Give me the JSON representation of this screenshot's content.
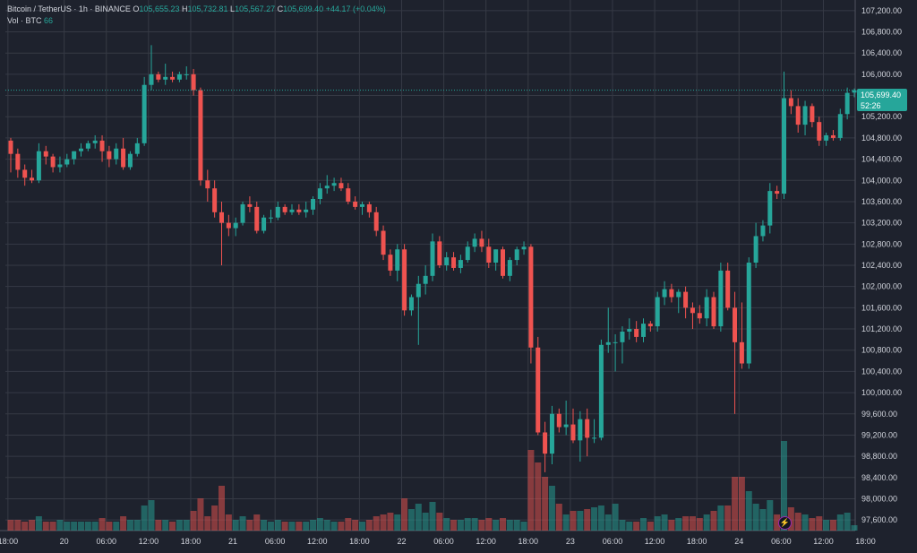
{
  "legend": {
    "symbol": "Bitcoin / TetherUS · 1h · BINANCE",
    "o_label": "O",
    "o_value": "105,655.23",
    "h_label": "H",
    "h_value": "105,732.81",
    "l_label": "L",
    "l_value": "105,567.27",
    "c_label": "C",
    "c_value": "105,699.40",
    "change": "+44.17 (+0.04%)",
    "vol_label": "Vol · BTC",
    "vol_value": "66"
  },
  "price_tag": {
    "price": "105,699.40",
    "countdown": "52:26"
  },
  "flash_icon": "lightning-icon",
  "colors": {
    "up": "#26a69a",
    "down": "#ef5350",
    "bg": "#1e222d",
    "grid": "#363a45"
  },
  "chart_data": {
    "type": "candlestick",
    "interval": "1h",
    "ylim": [
      97400,
      107400
    ],
    "y_ticks": [
      "107,200.00",
      "106,800.00",
      "106,400.00",
      "106,000.00",
      "105,600.00",
      "105,200.00",
      "104,800.00",
      "104,400.00",
      "104,000.00",
      "103,600.00",
      "103,200.00",
      "102,800.00",
      "102,400.00",
      "102,000.00",
      "101,600.00",
      "101,200.00",
      "100,800.00",
      "100,400.00",
      "100,000.00",
      "99,600.00",
      "99,200.00",
      "98,800.00",
      "98,400.00",
      "98,000.00",
      "97,600.00"
    ],
    "x_ticks": [
      "18:00",
      "20",
      "06:00",
      "12:00",
      "18:00",
      "21",
      "06:00",
      "12:00",
      "18:00",
      "22",
      "06:00",
      "12:00",
      "18:00",
      "23",
      "06:00",
      "12:00",
      "18:00",
      "24",
      "06:00",
      "12:00",
      "18:00"
    ],
    "x_tick_slots": [
      -0.4,
      7.6,
      13.6,
      19.6,
      25.6,
      31.6,
      37.6,
      43.6,
      49.6,
      55.6,
      61.6,
      67.6,
      73.6,
      79.6,
      85.6,
      91.6,
      97.6,
      103.6,
      109.6,
      115.6,
      121.6
    ],
    "candles": [
      {
        "o": 104750,
        "h": 104800,
        "l": 104150,
        "c": 104500,
        "v": 6
      },
      {
        "o": 104500,
        "h": 104600,
        "l": 104050,
        "c": 104200,
        "v": 6
      },
      {
        "o": 104200,
        "h": 104300,
        "l": 103900,
        "c": 104050,
        "v": 5
      },
      {
        "o": 104050,
        "h": 104200,
        "l": 103950,
        "c": 104000,
        "v": 6
      },
      {
        "o": 104000,
        "h": 104700,
        "l": 103950,
        "c": 104550,
        "v": 8
      },
      {
        "o": 104550,
        "h": 104650,
        "l": 104300,
        "c": 104450,
        "v": 5
      },
      {
        "o": 104450,
        "h": 104500,
        "l": 104150,
        "c": 104250,
        "v": 5
      },
      {
        "o": 104250,
        "h": 104450,
        "l": 104150,
        "c": 104300,
        "v": 6
      },
      {
        "o": 104300,
        "h": 104500,
        "l": 104250,
        "c": 104400,
        "v": 5
      },
      {
        "o": 104400,
        "h": 104550,
        "l": 104300,
        "c": 104550,
        "v": 5
      },
      {
        "o": 104550,
        "h": 104700,
        "l": 104450,
        "c": 104600,
        "v": 5
      },
      {
        "o": 104600,
        "h": 104750,
        "l": 104550,
        "c": 104700,
        "v": 5
      },
      {
        "o": 104700,
        "h": 104850,
        "l": 104600,
        "c": 104750,
        "v": 5
      },
      {
        "o": 104750,
        "h": 104850,
        "l": 104350,
        "c": 104550,
        "v": 7
      },
      {
        "o": 104550,
        "h": 104650,
        "l": 104250,
        "c": 104400,
        "v": 5
      },
      {
        "o": 104400,
        "h": 104700,
        "l": 104300,
        "c": 104600,
        "v": 5
      },
      {
        "o": 104600,
        "h": 104800,
        "l": 104200,
        "c": 104250,
        "v": 8
      },
      {
        "o": 104250,
        "h": 104550,
        "l": 104200,
        "c": 104500,
        "v": 6
      },
      {
        "o": 104500,
        "h": 104800,
        "l": 104450,
        "c": 104700,
        "v": 6
      },
      {
        "o": 104700,
        "h": 105950,
        "l": 104650,
        "c": 105800,
        "v": 14
      },
      {
        "o": 105800,
        "h": 106550,
        "l": 105700,
        "c": 106000,
        "v": 17
      },
      {
        "o": 106000,
        "h": 106050,
        "l": 105850,
        "c": 105900,
        "v": 6
      },
      {
        "o": 105900,
        "h": 106200,
        "l": 105800,
        "c": 105950,
        "v": 6
      },
      {
        "o": 105950,
        "h": 106050,
        "l": 105850,
        "c": 105900,
        "v": 5
      },
      {
        "o": 105900,
        "h": 106050,
        "l": 105850,
        "c": 106000,
        "v": 6
      },
      {
        "o": 106000,
        "h": 106150,
        "l": 105900,
        "c": 106000,
        "v": 6
      },
      {
        "o": 106000,
        "h": 106100,
        "l": 105600,
        "c": 105700,
        "v": 11
      },
      {
        "o": 105700,
        "h": 105750,
        "l": 103900,
        "c": 104000,
        "v": 18
      },
      {
        "o": 104000,
        "h": 104200,
        "l": 103600,
        "c": 103850,
        "v": 8
      },
      {
        "o": 103850,
        "h": 104000,
        "l": 103300,
        "c": 103400,
        "v": 14
      },
      {
        "o": 103400,
        "h": 103600,
        "l": 102400,
        "c": 103200,
        "v": 25
      },
      {
        "o": 103200,
        "h": 103350,
        "l": 102950,
        "c": 103100,
        "v": 9
      },
      {
        "o": 103100,
        "h": 103300,
        "l": 102950,
        "c": 103200,
        "v": 6
      },
      {
        "o": 103200,
        "h": 103600,
        "l": 103150,
        "c": 103550,
        "v": 8
      },
      {
        "o": 103550,
        "h": 103700,
        "l": 103400,
        "c": 103500,
        "v": 6
      },
      {
        "o": 103500,
        "h": 103600,
        "l": 103000,
        "c": 103050,
        "v": 9
      },
      {
        "o": 103050,
        "h": 103350,
        "l": 103000,
        "c": 103300,
        "v": 6
      },
      {
        "o": 103300,
        "h": 103450,
        "l": 103200,
        "c": 103300,
        "v": 5
      },
      {
        "o": 103300,
        "h": 103600,
        "l": 103250,
        "c": 103500,
        "v": 6
      },
      {
        "o": 103500,
        "h": 103550,
        "l": 103350,
        "c": 103400,
        "v": 5
      },
      {
        "o": 103400,
        "h": 103550,
        "l": 103350,
        "c": 103450,
        "v": 5
      },
      {
        "o": 103450,
        "h": 103550,
        "l": 103350,
        "c": 103400,
        "v": 5
      },
      {
        "o": 103400,
        "h": 103600,
        "l": 103300,
        "c": 103450,
        "v": 5
      },
      {
        "o": 103450,
        "h": 103700,
        "l": 103350,
        "c": 103650,
        "v": 6
      },
      {
        "o": 103650,
        "h": 103950,
        "l": 103550,
        "c": 103850,
        "v": 7
      },
      {
        "o": 103850,
        "h": 104100,
        "l": 103750,
        "c": 103900,
        "v": 6
      },
      {
        "o": 103900,
        "h": 104050,
        "l": 103800,
        "c": 103950,
        "v": 5
      },
      {
        "o": 103950,
        "h": 104050,
        "l": 103800,
        "c": 103850,
        "v": 5
      },
      {
        "o": 103850,
        "h": 103950,
        "l": 103550,
        "c": 103600,
        "v": 7
      },
      {
        "o": 103600,
        "h": 103700,
        "l": 103450,
        "c": 103500,
        "v": 6
      },
      {
        "o": 103500,
        "h": 103600,
        "l": 103350,
        "c": 103550,
        "v": 5
      },
      {
        "o": 103550,
        "h": 103600,
        "l": 103300,
        "c": 103400,
        "v": 6
      },
      {
        "o": 103400,
        "h": 103500,
        "l": 102950,
        "c": 103050,
        "v": 8
      },
      {
        "o": 103050,
        "h": 103150,
        "l": 102500,
        "c": 102600,
        "v": 9
      },
      {
        "o": 102600,
        "h": 102700,
        "l": 102200,
        "c": 102300,
        "v": 10
      },
      {
        "o": 102300,
        "h": 102800,
        "l": 102100,
        "c": 102700,
        "v": 9
      },
      {
        "o": 102700,
        "h": 102800,
        "l": 101450,
        "c": 101550,
        "v": 18
      },
      {
        "o": 101550,
        "h": 101850,
        "l": 101450,
        "c": 101800,
        "v": 12
      },
      {
        "o": 101800,
        "h": 102200,
        "l": 100900,
        "c": 102050,
        "v": 15
      },
      {
        "o": 102050,
        "h": 102400,
        "l": 101850,
        "c": 102200,
        "v": 10
      },
      {
        "o": 102200,
        "h": 103000,
        "l": 102100,
        "c": 102850,
        "v": 16
      },
      {
        "o": 102850,
        "h": 102950,
        "l": 102350,
        "c": 102400,
        "v": 10
      },
      {
        "o": 102400,
        "h": 102650,
        "l": 102300,
        "c": 102550,
        "v": 7
      },
      {
        "o": 102550,
        "h": 102650,
        "l": 102300,
        "c": 102350,
        "v": 6
      },
      {
        "o": 102350,
        "h": 102600,
        "l": 102250,
        "c": 102500,
        "v": 6
      },
      {
        "o": 102500,
        "h": 102850,
        "l": 102450,
        "c": 102750,
        "v": 7
      },
      {
        "o": 102750,
        "h": 103000,
        "l": 102650,
        "c": 102900,
        "v": 7
      },
      {
        "o": 102900,
        "h": 103050,
        "l": 102650,
        "c": 102750,
        "v": 6
      },
      {
        "o": 102750,
        "h": 102900,
        "l": 102350,
        "c": 102450,
        "v": 7
      },
      {
        "o": 102450,
        "h": 102700,
        "l": 102300,
        "c": 102700,
        "v": 6
      },
      {
        "o": 102700,
        "h": 102750,
        "l": 102150,
        "c": 102200,
        "v": 7
      },
      {
        "o": 102200,
        "h": 102550,
        "l": 102100,
        "c": 102500,
        "v": 6
      },
      {
        "o": 102500,
        "h": 102750,
        "l": 102400,
        "c": 102700,
        "v": 6
      },
      {
        "o": 102700,
        "h": 102850,
        "l": 102600,
        "c": 102750,
        "v": 5
      },
      {
        "o": 102750,
        "h": 102800,
        "l": 100550,
        "c": 100850,
        "v": 45
      },
      {
        "o": 100850,
        "h": 101050,
        "l": 99200,
        "c": 99250,
        "v": 38
      },
      {
        "o": 99250,
        "h": 99450,
        "l": 98500,
        "c": 98850,
        "v": 30
      },
      {
        "o": 98850,
        "h": 99750,
        "l": 98650,
        "c": 99600,
        "v": 25
      },
      {
        "o": 99600,
        "h": 99700,
        "l": 99250,
        "c": 99350,
        "v": 15
      },
      {
        "o": 99350,
        "h": 99850,
        "l": 99200,
        "c": 99400,
        "v": 9
      },
      {
        "o": 99400,
        "h": 99700,
        "l": 99050,
        "c": 99100,
        "v": 11
      },
      {
        "o": 99100,
        "h": 99650,
        "l": 98700,
        "c": 99500,
        "v": 11
      },
      {
        "o": 99500,
        "h": 99700,
        "l": 98800,
        "c": 99150,
        "v": 12
      },
      {
        "o": 99150,
        "h": 99500,
        "l": 99050,
        "c": 99150,
        "v": 13
      },
      {
        "o": 99150,
        "h": 101000,
        "l": 99100,
        "c": 100900,
        "v": 14
      },
      {
        "o": 100900,
        "h": 101600,
        "l": 100750,
        "c": 100950,
        "v": 9
      },
      {
        "o": 100950,
        "h": 101100,
        "l": 100400,
        "c": 100950,
        "v": 15
      },
      {
        "o": 100950,
        "h": 101250,
        "l": 100550,
        "c": 101150,
        "v": 6
      },
      {
        "o": 101150,
        "h": 101400,
        "l": 101000,
        "c": 101200,
        "v": 5
      },
      {
        "o": 101200,
        "h": 101350,
        "l": 100950,
        "c": 101050,
        "v": 5
      },
      {
        "o": 101050,
        "h": 101400,
        "l": 100950,
        "c": 101300,
        "v": 7
      },
      {
        "o": 101300,
        "h": 101350,
        "l": 101150,
        "c": 101250,
        "v": 5
      },
      {
        "o": 101250,
        "h": 101900,
        "l": 101150,
        "c": 101800,
        "v": 8
      },
      {
        "o": 101800,
        "h": 102100,
        "l": 101650,
        "c": 101950,
        "v": 9
      },
      {
        "o": 101950,
        "h": 102050,
        "l": 101700,
        "c": 101800,
        "v": 6
      },
      {
        "o": 101800,
        "h": 101950,
        "l": 101500,
        "c": 101900,
        "v": 7
      },
      {
        "o": 101900,
        "h": 102000,
        "l": 101400,
        "c": 101600,
        "v": 8
      },
      {
        "o": 101600,
        "h": 101700,
        "l": 101200,
        "c": 101500,
        "v": 8
      },
      {
        "o": 101500,
        "h": 101650,
        "l": 101300,
        "c": 101400,
        "v": 7
      },
      {
        "o": 101400,
        "h": 101950,
        "l": 101250,
        "c": 101800,
        "v": 9
      },
      {
        "o": 101800,
        "h": 101900,
        "l": 101200,
        "c": 101250,
        "v": 11
      },
      {
        "o": 101250,
        "h": 102450,
        "l": 101150,
        "c": 102300,
        "v": 14
      },
      {
        "o": 102300,
        "h": 102450,
        "l": 101550,
        "c": 101600,
        "v": 14
      },
      {
        "o": 101600,
        "h": 101900,
        "l": 99600,
        "c": 100950,
        "v": 30
      },
      {
        "o": 100950,
        "h": 101700,
        "l": 100450,
        "c": 100550,
        "v": 30
      },
      {
        "o": 100550,
        "h": 102550,
        "l": 100450,
        "c": 102450,
        "v": 22
      },
      {
        "o": 102450,
        "h": 103200,
        "l": 102350,
        "c": 102950,
        "v": 15
      },
      {
        "o": 102950,
        "h": 103250,
        "l": 102850,
        "c": 103150,
        "v": 12
      },
      {
        "o": 103150,
        "h": 103950,
        "l": 103000,
        "c": 103800,
        "v": 17
      },
      {
        "o": 103800,
        "h": 103900,
        "l": 103650,
        "c": 103750,
        "v": 9
      },
      {
        "o": 103750,
        "h": 106050,
        "l": 103650,
        "c": 105550,
        "v": 50
      },
      {
        "o": 105550,
        "h": 105700,
        "l": 105250,
        "c": 105400,
        "v": 13
      },
      {
        "o": 105400,
        "h": 105550,
        "l": 104900,
        "c": 105050,
        "v": 10
      },
      {
        "o": 105050,
        "h": 105500,
        "l": 104850,
        "c": 105400,
        "v": 9
      },
      {
        "o": 105400,
        "h": 105450,
        "l": 105000,
        "c": 105100,
        "v": 7
      },
      {
        "o": 105100,
        "h": 105200,
        "l": 104650,
        "c": 104750,
        "v": 8
      },
      {
        "o": 104750,
        "h": 104900,
        "l": 104650,
        "c": 104850,
        "v": 6
      },
      {
        "o": 104850,
        "h": 104950,
        "l": 104750,
        "c": 104800,
        "v": 6
      },
      {
        "o": 104800,
        "h": 105350,
        "l": 104750,
        "c": 105250,
        "v": 9
      },
      {
        "o": 105250,
        "h": 105750,
        "l": 105150,
        "c": 105650,
        "v": 10
      },
      {
        "o": 105655.23,
        "h": 105732.81,
        "l": 105567.27,
        "c": 105699.4,
        "v": 3
      }
    ]
  }
}
